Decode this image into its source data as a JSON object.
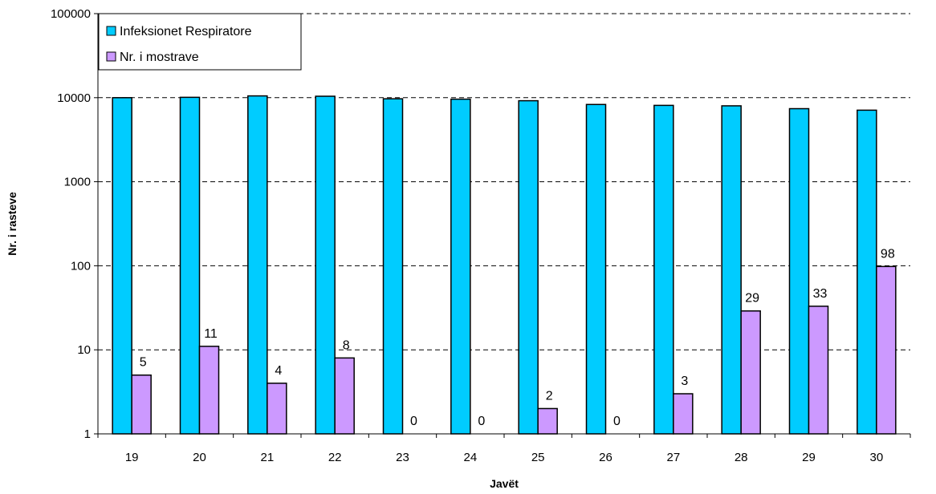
{
  "chart_data": {
    "type": "bar",
    "xlabel": "Javët",
    "ylabel": "Nr. i rasteve",
    "yscale": "log",
    "ylim": [
      1,
      100000
    ],
    "yticks": [
      1,
      10,
      100,
      1000,
      10000,
      100000
    ],
    "ytick_labels": [
      "1",
      "10",
      "100",
      "1000",
      "10000",
      "100000"
    ],
    "grid": "horizontal dashed",
    "legend_position": "top-left",
    "categories": [
      "19",
      "20",
      "21",
      "22",
      "23",
      "24",
      "25",
      "26",
      "27",
      "28",
      "29",
      "30"
    ],
    "series": [
      {
        "name": "Infeksionet Respiratore",
        "color": "#00ccff",
        "values": [
          10000,
          10100,
          10500,
          10400,
          9700,
          9600,
          9200,
          8300,
          8100,
          8000,
          7400,
          7100
        ],
        "data_labels": []
      },
      {
        "name": "Nr. i mostrave",
        "color": "#cc99ff",
        "values": [
          5,
          11,
          4,
          8,
          0,
          0,
          2,
          0,
          3,
          29,
          33,
          98
        ],
        "data_labels": [
          "5",
          "11",
          "4",
          "8",
          "0",
          "0",
          "2",
          "0",
          "3",
          "29",
          "33",
          "98"
        ]
      }
    ]
  }
}
